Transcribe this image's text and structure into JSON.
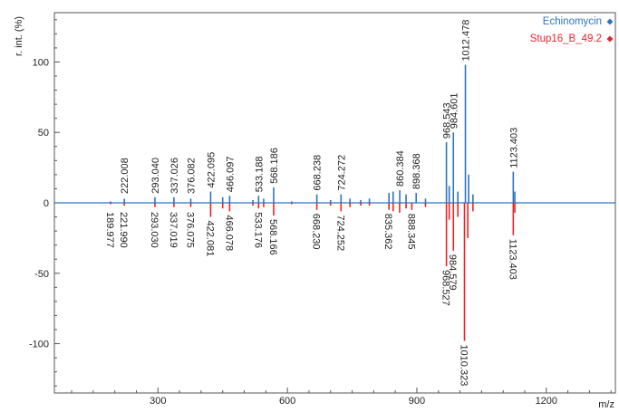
{
  "chart_data": {
    "type": "line",
    "xlabel": "m/z",
    "ylabel": "r. int. (%)",
    "xlim": [
      60,
      1360
    ],
    "ylim": [
      -135,
      135
    ],
    "xticks": [
      300,
      600,
      900,
      1200
    ],
    "yticks": [
      -100,
      -50,
      0,
      50,
      100
    ],
    "grid": false,
    "legend_position": "top-right",
    "series": [
      {
        "name": "Echinomycin",
        "color": "#2e75c0",
        "direction": 1,
        "peaks": [
          {
            "x": 189.977,
            "y": 1
          },
          {
            "x": 222.008,
            "y": 3,
            "label": "222.008"
          },
          {
            "x": 293.04,
            "y": 4,
            "label": "293.040"
          },
          {
            "x": 337.026,
            "y": 4,
            "label": "337.026"
          },
          {
            "x": 376.082,
            "y": 3,
            "label": "376.082"
          },
          {
            "x": 422.095,
            "y": 8,
            "label": "422.095"
          },
          {
            "x": 450.0,
            "y": 4
          },
          {
            "x": 466.097,
            "y": 5,
            "label": "466.097"
          },
          {
            "x": 520.0,
            "y": 2
          },
          {
            "x": 533.188,
            "y": 5,
            "label": "533.188"
          },
          {
            "x": 545.0,
            "y": 3
          },
          {
            "x": 568.186,
            "y": 11,
            "label": "568.186"
          },
          {
            "x": 610.0,
            "y": 1
          },
          {
            "x": 668.238,
            "y": 6,
            "label": "668.238"
          },
          {
            "x": 700.0,
            "y": 2
          },
          {
            "x": 724.272,
            "y": 6,
            "label": "724.272"
          },
          {
            "x": 745.0,
            "y": 3
          },
          {
            "x": 770.0,
            "y": 2
          },
          {
            "x": 790.0,
            "y": 3
          },
          {
            "x": 835.362,
            "y": 7
          },
          {
            "x": 845.0,
            "y": 8
          },
          {
            "x": 860.384,
            "y": 9,
            "label": "860.384"
          },
          {
            "x": 875.0,
            "y": 6
          },
          {
            "x": 898.368,
            "y": 7,
            "label": "898.368"
          },
          {
            "x": 920.0,
            "y": 3
          },
          {
            "x": 968.543,
            "y": 43,
            "label": "968.543"
          },
          {
            "x": 975.0,
            "y": 12
          },
          {
            "x": 984.601,
            "y": 50,
            "label": "984.601"
          },
          {
            "x": 995.0,
            "y": 8
          },
          {
            "x": 1012.478,
            "y": 98,
            "label": "1012.478"
          },
          {
            "x": 1020.0,
            "y": 20
          },
          {
            "x": 1030.0,
            "y": 6
          },
          {
            "x": 1123.403,
            "y": 22,
            "label": "1123.403"
          },
          {
            "x": 1127.0,
            "y": 8
          }
        ]
      },
      {
        "name": "Stup16_B_49.2",
        "color": "#e8242b",
        "direction": -1,
        "peaks": [
          {
            "x": 189.977,
            "y": 1,
            "label": "189.977"
          },
          {
            "x": 221.99,
            "y": 2,
            "label": "221.990"
          },
          {
            "x": 293.03,
            "y": 3,
            "label": "293.030"
          },
          {
            "x": 337.019,
            "y": 3,
            "label": "337.019"
          },
          {
            "x": 376.075,
            "y": 3,
            "label": "376.075"
          },
          {
            "x": 422.081,
            "y": 10,
            "label": "422.081"
          },
          {
            "x": 450.0,
            "y": 4
          },
          {
            "x": 466.078,
            "y": 6,
            "label": "466.078"
          },
          {
            "x": 520.0,
            "y": 2
          },
          {
            "x": 533.176,
            "y": 4,
            "label": "533.176"
          },
          {
            "x": 545.0,
            "y": 3
          },
          {
            "x": 568.166,
            "y": 9,
            "label": "568.166"
          },
          {
            "x": 610.0,
            "y": 1
          },
          {
            "x": 668.23,
            "y": 5,
            "label": "668.230"
          },
          {
            "x": 700.0,
            "y": 2
          },
          {
            "x": 724.252,
            "y": 6,
            "label": "724.252"
          },
          {
            "x": 745.0,
            "y": 3
          },
          {
            "x": 770.0,
            "y": 2
          },
          {
            "x": 790.0,
            "y": 2
          },
          {
            "x": 835.362,
            "y": 5,
            "label": "835.362"
          },
          {
            "x": 845.0,
            "y": 6
          },
          {
            "x": 860.0,
            "y": 7
          },
          {
            "x": 875.0,
            "y": 4
          },
          {
            "x": 888.345,
            "y": 5,
            "label": "888.345"
          },
          {
            "x": 920.0,
            "y": 3
          },
          {
            "x": 968.527,
            "y": 45,
            "label": "968.527"
          },
          {
            "x": 975.0,
            "y": 12
          },
          {
            "x": 984.579,
            "y": 34,
            "label": "984.579"
          },
          {
            "x": 995.0,
            "y": 10
          },
          {
            "x": 1010.323,
            "y": 98,
            "label": "1010.323"
          },
          {
            "x": 1018.0,
            "y": 25
          },
          {
            "x": 1030.0,
            "y": 6
          },
          {
            "x": 1123.403,
            "y": 23,
            "label": "1123.403"
          },
          {
            "x": 1127.0,
            "y": 7
          }
        ]
      }
    ]
  }
}
